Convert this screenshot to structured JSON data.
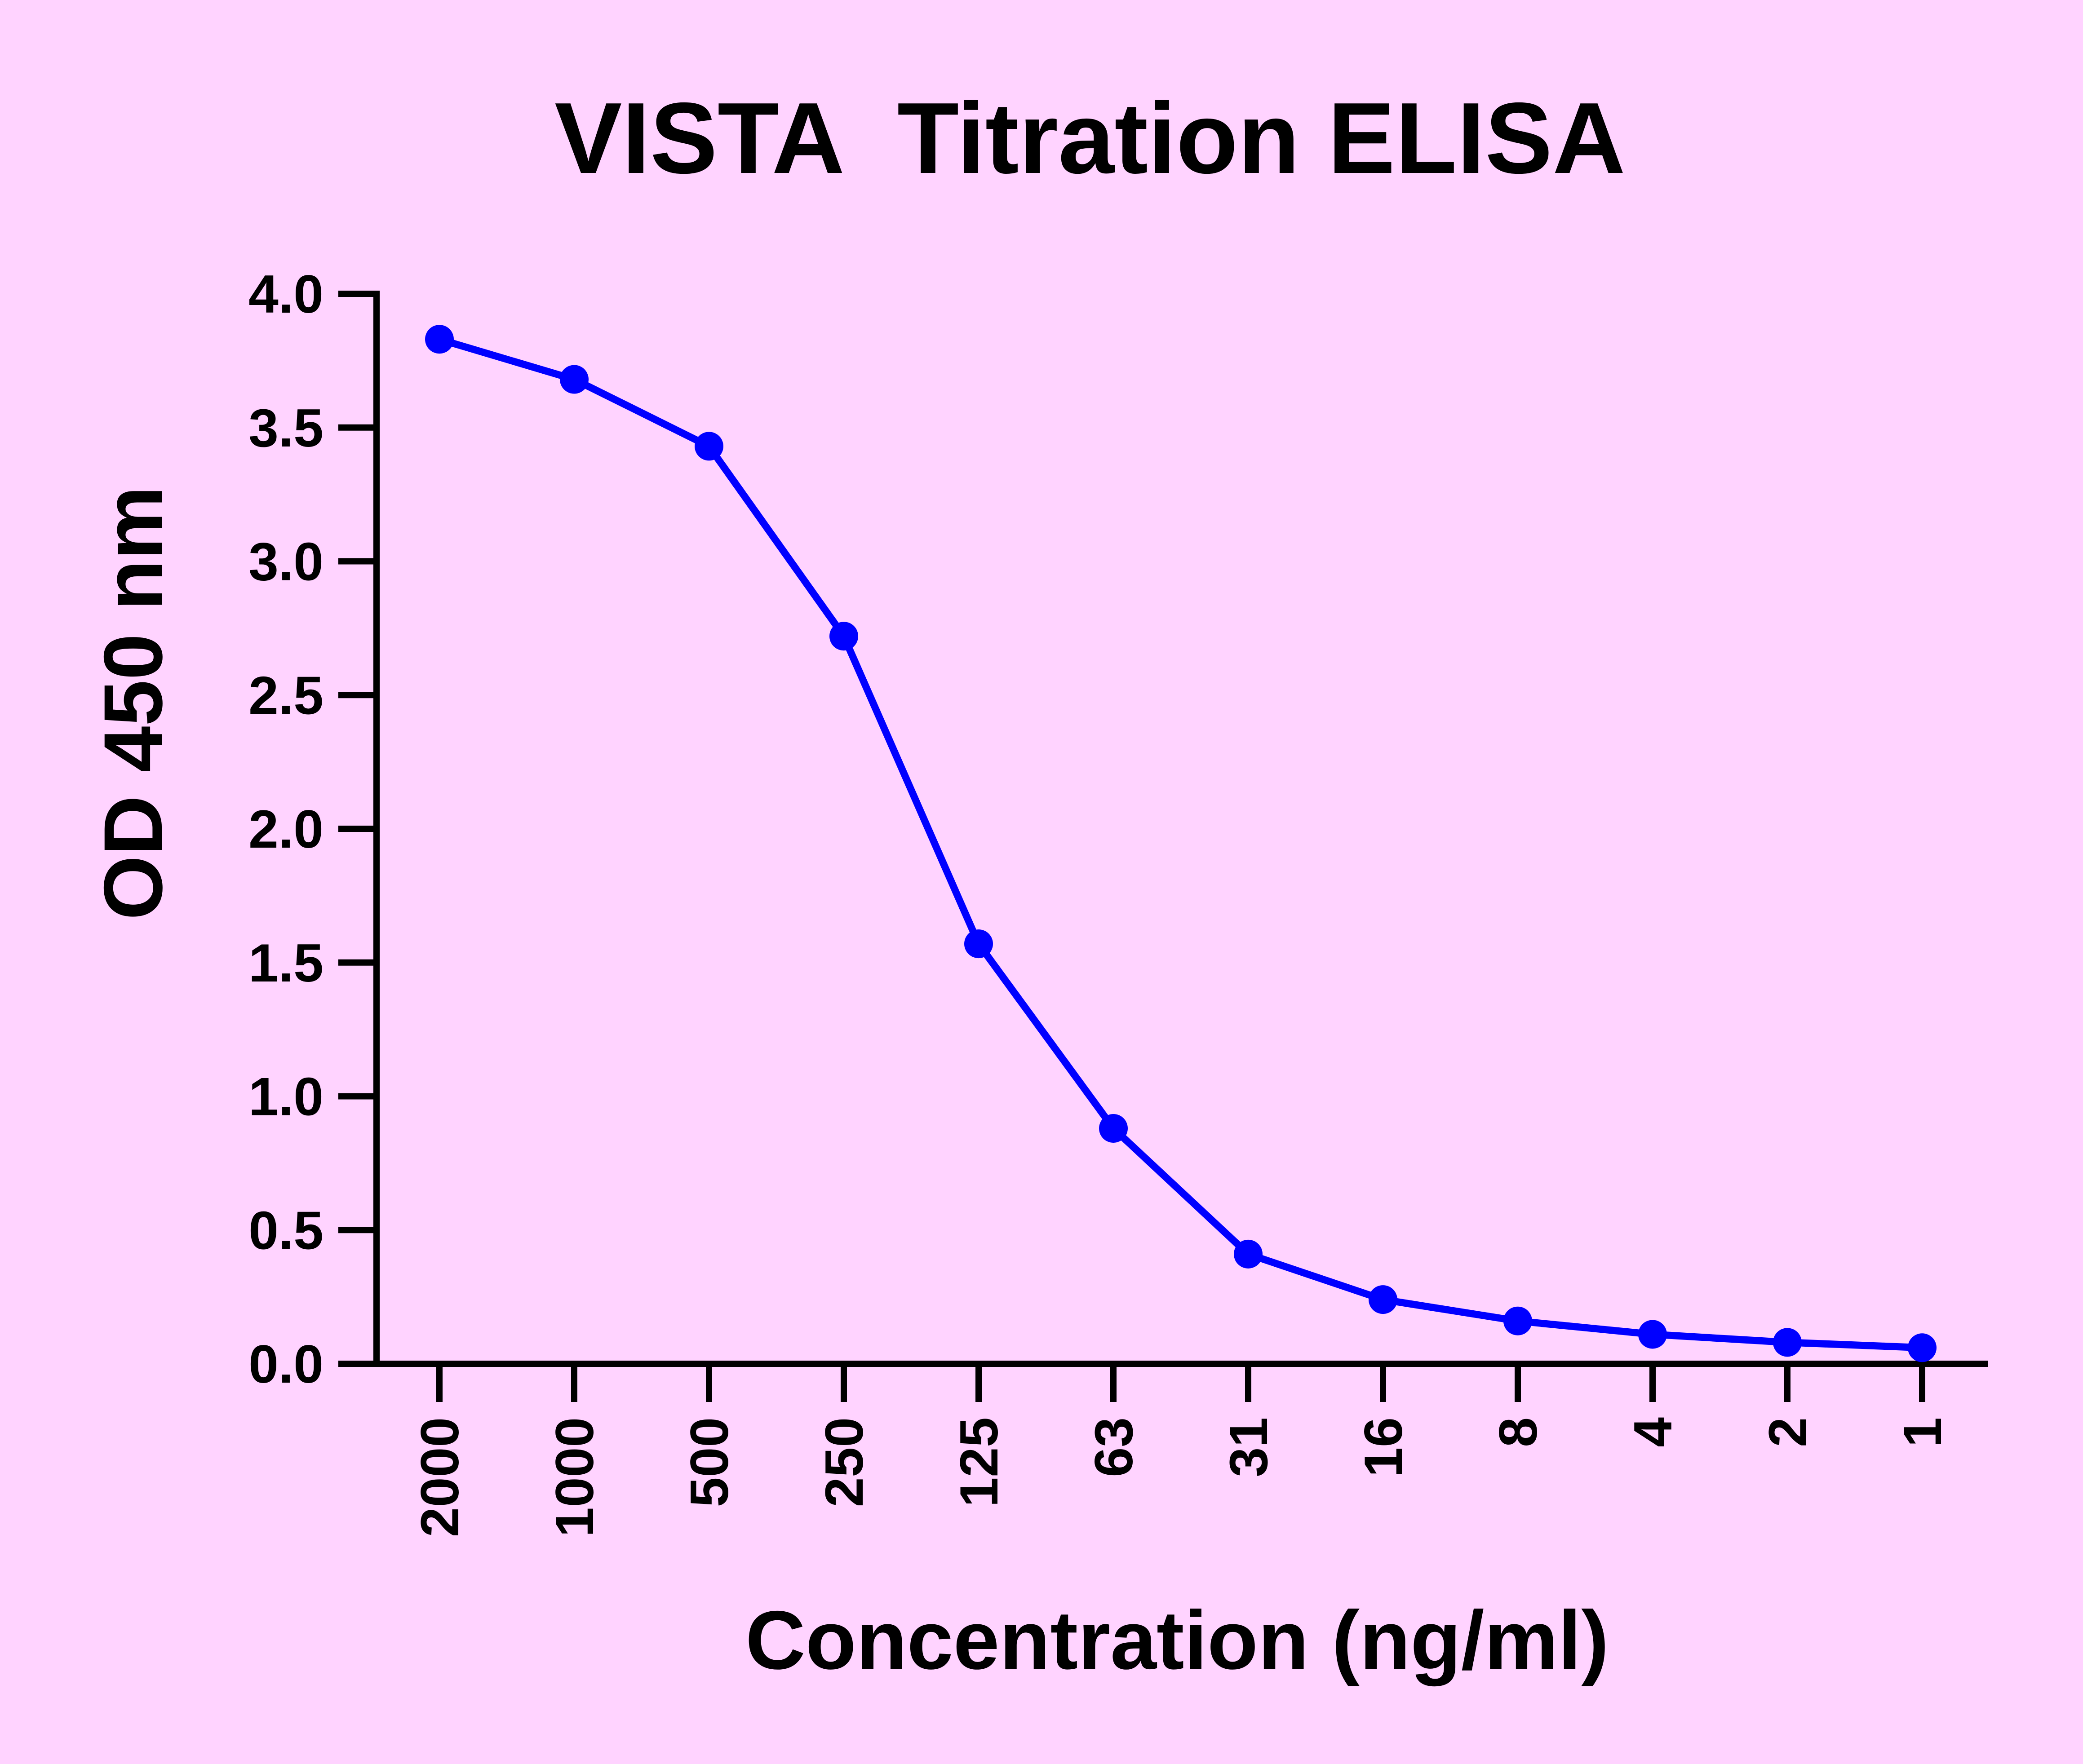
{
  "chart_data": {
    "type": "line",
    "title": "VISTA  Titration ELISA",
    "xlabel": "Concentration (ng/ml)",
    "ylabel": "OD 450 nm",
    "categories": [
      "2000",
      "1000",
      "500",
      "250",
      "125",
      "63",
      "31",
      "16",
      "8",
      "4",
      "2",
      "1"
    ],
    "series": [
      {
        "values": [
          3.83,
          3.68,
          3.43,
          2.72,
          1.57,
          0.88,
          0.41,
          0.24,
          0.16,
          0.11,
          0.08,
          0.06
        ]
      }
    ],
    "ylim": [
      0,
      4
    ],
    "yticks": [
      "0.0",
      "0.5",
      "1.0",
      "1.5",
      "2.0",
      "2.5",
      "3.0",
      "3.5",
      "4.0"
    ],
    "grid": false,
    "legend": "none",
    "colors": {
      "background": "#FFD3FF",
      "series": "#0000FF",
      "axis": "#000000"
    }
  }
}
